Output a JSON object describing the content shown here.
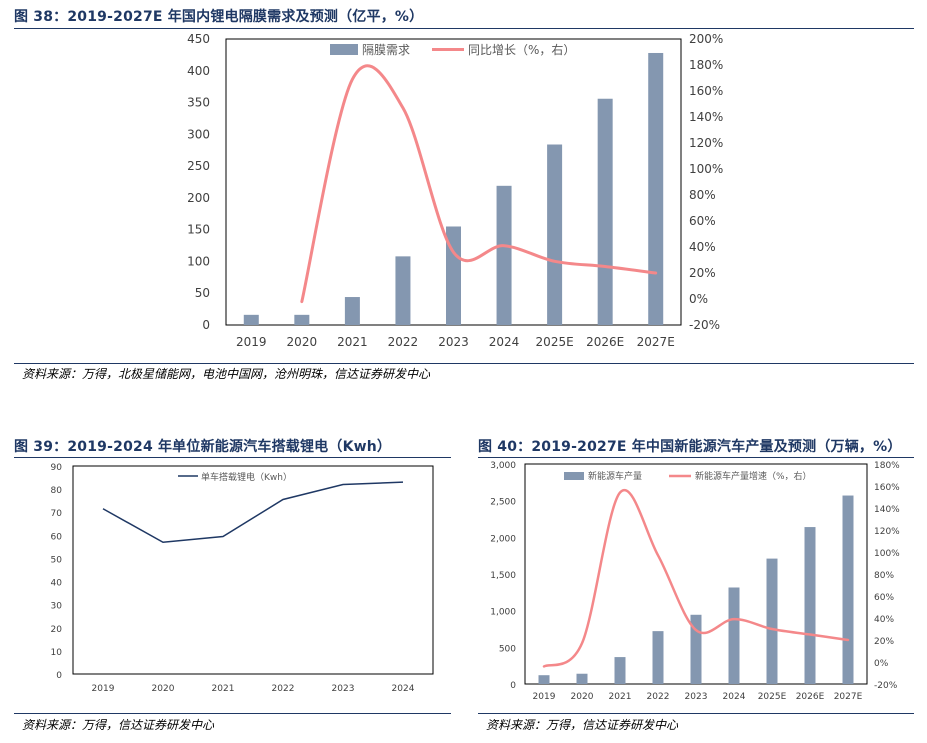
{
  "figures": [
    {
      "title": "图 38：2019-2027E 年国内锂电隔膜需求及预测（亿平，%）",
      "source": "资料来源：万得，北极星储能网，电池中国网，沧州明珠，信达证券研发中心"
    },
    {
      "title": "图 39：2019-2024 年单位新能源汽车搭载锂电（Kwh）",
      "source": "资料来源：万得，信达证券研发中心"
    },
    {
      "title": "图 40：2019-2027E 年中国新能源汽车产量及预测（万辆，%）",
      "source": "资料来源：万得，信达证券研发中心"
    }
  ],
  "chart_data": [
    {
      "type": "bar",
      "categories": [
        "2019",
        "2020",
        "2021",
        "2022",
        "2023",
        "2024",
        "2025E",
        "2026E",
        "2027E"
      ],
      "series": [
        {
          "name": "隔膜需求",
          "type": "bar",
          "axis": "left",
          "values": [
            16,
            16,
            44,
            108,
            155,
            219,
            284,
            356,
            428
          ]
        },
        {
          "name": "同比增长（%，右）",
          "type": "line",
          "axis": "right",
          "values": [
            null,
            -2,
            169,
            147,
            36,
            41,
            29,
            25,
            20
          ]
        }
      ],
      "y_left": {
        "range": [
          0,
          450
        ],
        "ticks": [
          "0",
          "50",
          "100",
          "150",
          "200",
          "250",
          "300",
          "350",
          "400",
          "450"
        ]
      },
      "y_right": {
        "range": [
          -20,
          200
        ],
        "ticks": [
          "-20%",
          "0%",
          "20%",
          "40%",
          "60%",
          "80%",
          "100%",
          "120%",
          "140%",
          "160%",
          "180%",
          "200%"
        ]
      },
      "legend_position": "top",
      "colors": {
        "bar": "#8497b0",
        "line": "#f4888a"
      }
    },
    {
      "type": "line",
      "categories": [
        "2019",
        "2020",
        "2021",
        "2022",
        "2023",
        "2024"
      ],
      "series": [
        {
          "name": "单车搭载锂电（Kwh）",
          "values": [
            71.5,
            57,
            59.5,
            75.5,
            82,
            83
          ]
        }
      ],
      "y": {
        "range": [
          0,
          90
        ],
        "ticks": [
          "0",
          "10",
          "20",
          "30",
          "40",
          "50",
          "60",
          "70",
          "80",
          "90"
        ]
      },
      "legend_position": "top",
      "colors": {
        "line": "#1f3864"
      }
    },
    {
      "type": "bar",
      "categories": [
        "2019",
        "2020",
        "2021",
        "2022",
        "2023",
        "2024",
        "2025E",
        "2026E",
        "2027E"
      ],
      "series": [
        {
          "name": "新能源车产量",
          "type": "bar",
          "axis": "left",
          "values": [
            120,
            140,
            367,
            721,
            944,
            1316,
            1710,
            2140,
            2570
          ]
        },
        {
          "name": "新能源车产量增速（%，右）",
          "type": "line",
          "axis": "right",
          "values": [
            -4,
            17,
            154,
            97,
            29,
            39,
            30,
            25,
            20
          ]
        }
      ],
      "y_left": {
        "range": [
          0,
          3000
        ],
        "ticks": [
          "0",
          "500",
          "1,000",
          "1,500",
          "2,000",
          "2,500",
          "3,000"
        ]
      },
      "y_right": {
        "range": [
          -20,
          180
        ],
        "ticks": [
          "-20%",
          "0%",
          "20%",
          "40%",
          "60%",
          "80%",
          "100%",
          "120%",
          "140%",
          "160%",
          "180%"
        ]
      },
      "legend_position": "top",
      "colors": {
        "bar": "#8497b0",
        "line": "#f4888a"
      }
    }
  ]
}
